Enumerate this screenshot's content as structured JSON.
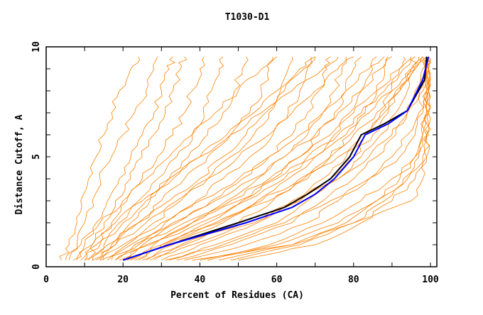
{
  "chart_data": {
    "type": "line",
    "title": "T1030-D1",
    "xlabel": "Percent of Residues (CA)",
    "ylabel": "Distance Cutoff, A",
    "xlim": [
      0,
      100
    ],
    "ylim": [
      0,
      10
    ],
    "x_ticks": [
      "0",
      "20",
      "40",
      "60",
      "80",
      "100"
    ],
    "y_ticks": [
      "0",
      "5",
      "10"
    ],
    "grid": false,
    "y_levels": [
      0.3,
      1,
      2,
      3,
      4,
      5,
      6,
      7,
      8,
      9,
      9.55
    ],
    "colors": {
      "models": "#ff8000",
      "highlight_black": "#000000",
      "highlight_blue": "#0000ff"
    },
    "highlight_series": [
      {
        "name": "black",
        "x": [
          20,
          32,
          50,
          62,
          68,
          74,
          79,
          82,
          88,
          94,
          98.5,
          99
        ]
      },
      {
        "name": "blue",
        "x": [
          20,
          32,
          52,
          64,
          70,
          75,
          80,
          83,
          89,
          94,
          98,
          99.5
        ]
      }
    ],
    "highlight_y_levels": [
      0.3,
      1,
      2,
      2.7,
      3.3,
      4,
      5,
      6,
      6.5,
      7.1,
      8.5,
      9.55
    ],
    "model_series": [
      [
        4,
        6,
        8,
        9,
        11,
        13,
        15,
        17,
        19,
        22,
        24
      ],
      [
        6,
        8,
        10,
        12,
        14,
        17,
        20,
        23,
        26,
        28,
        29
      ],
      [
        8,
        10,
        13,
        16,
        19,
        22,
        25,
        28,
        30,
        32,
        33
      ],
      [
        10,
        12,
        15,
        18,
        22,
        25,
        28,
        31,
        33,
        35,
        36
      ],
      [
        11,
        13,
        17,
        21,
        25,
        29,
        33,
        36,
        38,
        40,
        41
      ],
      [
        12,
        15,
        19,
        24,
        29,
        34,
        38,
        41,
        43,
        45,
        46
      ],
      [
        14,
        17,
        22,
        27,
        32,
        37,
        42,
        46,
        49,
        51,
        52
      ],
      [
        15,
        18,
        24,
        30,
        36,
        42,
        48,
        53,
        56,
        58,
        59
      ],
      [
        17,
        21,
        28,
        35,
        42,
        48,
        54,
        58,
        61,
        63,
        64
      ],
      [
        18,
        23,
        31,
        39,
        46,
        53,
        59,
        63,
        66,
        68,
        69
      ],
      [
        20,
        25,
        34,
        43,
        51,
        58,
        64,
        68,
        71,
        73,
        74
      ],
      [
        22,
        28,
        38,
        47,
        55,
        62,
        68,
        72,
        75,
        77,
        78
      ],
      [
        24,
        30,
        42,
        51,
        59,
        66,
        71,
        75,
        78,
        80,
        82
      ],
      [
        26,
        33,
        46,
        55,
        63,
        70,
        75,
        79,
        82,
        85,
        86
      ],
      [
        28,
        36,
        50,
        59,
        67,
        74,
        79,
        83,
        86,
        88,
        89
      ],
      [
        30,
        40,
        55,
        64,
        72,
        78,
        83,
        87,
        90,
        92,
        93
      ],
      [
        32,
        44,
        60,
        68,
        76,
        82,
        87,
        91,
        94,
        96,
        97
      ],
      [
        34,
        48,
        64,
        72,
        80,
        86,
        91,
        94,
        96,
        98,
        98
      ],
      [
        36,
        52,
        68,
        76,
        84,
        90,
        94,
        97,
        98,
        99,
        99
      ],
      [
        40,
        58,
        72,
        82,
        90,
        96,
        98,
        99,
        99,
        99,
        99
      ],
      [
        45,
        64,
        78,
        86,
        94,
        98,
        99,
        99.5,
        99.5,
        99.5,
        99.5
      ],
      [
        50,
        70,
        82,
        90,
        96,
        99,
        99.5,
        99.5,
        99.5,
        99.5,
        99.5
      ],
      [
        38,
        64,
        80,
        95,
        98,
        99,
        99,
        99,
        99,
        99,
        99
      ],
      [
        9,
        14,
        20,
        26,
        33,
        40,
        47,
        54,
        60,
        66,
        70
      ],
      [
        13,
        20,
        30,
        40,
        50,
        58,
        66,
        72,
        78,
        84,
        88
      ],
      [
        16,
        24,
        36,
        48,
        58,
        66,
        74,
        80,
        86,
        92,
        95
      ],
      [
        5,
        9,
        14,
        20,
        26,
        32,
        38,
        44,
        50,
        56,
        60
      ],
      [
        7,
        12,
        18,
        25,
        32,
        40,
        48,
        56,
        64,
        72,
        76
      ],
      [
        19,
        27,
        40,
        52,
        62,
        70,
        78,
        84,
        90,
        95,
        97
      ],
      [
        21,
        31,
        45,
        58,
        68,
        76,
        82,
        88,
        92,
        96,
        98
      ],
      [
        25,
        35,
        52,
        66,
        74,
        80,
        85,
        89,
        92,
        95,
        96
      ],
      [
        12,
        18,
        26,
        34,
        42,
        50,
        58,
        64,
        70,
        76,
        80
      ],
      [
        10,
        16,
        24,
        32,
        40,
        46,
        52,
        57,
        62,
        67,
        70
      ],
      [
        14,
        22,
        33,
        44,
        54,
        62,
        70,
        76,
        82,
        87,
        90
      ],
      [
        18,
        26,
        38,
        50,
        60,
        68,
        76,
        82,
        88,
        93,
        96
      ],
      [
        23,
        30,
        44,
        56,
        66,
        74,
        80,
        86,
        91,
        96,
        98
      ],
      [
        27,
        38,
        54,
        66,
        76,
        84,
        90,
        94,
        97,
        99,
        99.5
      ],
      [
        31,
        46,
        62,
        74,
        84,
        92,
        96,
        98,
        99,
        99.5,
        99.5
      ],
      [
        42,
        60,
        76,
        86,
        92,
        96,
        98,
        99,
        99.5,
        99.5,
        99.5
      ],
      [
        48,
        66,
        80,
        88,
        93,
        97,
        99,
        99.5,
        99.5,
        99.5,
        99.5
      ]
    ]
  }
}
